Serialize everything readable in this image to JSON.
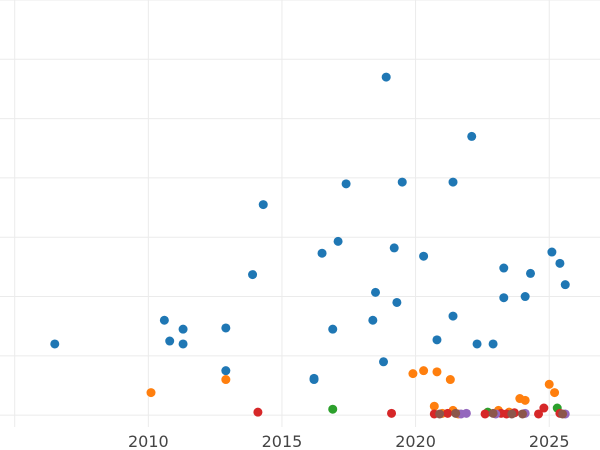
{
  "chart_data": {
    "type": "scatter",
    "title": "",
    "xlabel": "",
    "ylabel": "",
    "xlim": [
      2004.45,
      2026.9
    ],
    "ylim": [
      -0.2,
      7.0
    ],
    "x_ticks": [
      2010,
      2015,
      2020,
      2025
    ],
    "x_tick_labels": [
      "2010",
      "2015",
      "2020",
      "2025"
    ],
    "y_gridlines": [
      0,
      1,
      2,
      3,
      4,
      5,
      6,
      7
    ],
    "x_gridlines": [
      2005,
      2010,
      2015,
      2020,
      2025
    ],
    "grid": true,
    "legend": "none",
    "series": [
      {
        "color": "#1f77b4",
        "points": [
          [
            2006.5,
            1.2
          ],
          [
            2010.6,
            1.6
          ],
          [
            2010.8,
            1.25
          ],
          [
            2011.3,
            1.45
          ],
          [
            2011.3,
            1.2
          ],
          [
            2012.9,
            1.47
          ],
          [
            2012.9,
            0.75
          ],
          [
            2013.9,
            2.37
          ],
          [
            2014.3,
            3.55
          ],
          [
            2016.2,
            0.6
          ],
          [
            2016.2,
            0.62
          ],
          [
            2016.5,
            2.73
          ],
          [
            2016.9,
            1.45
          ],
          [
            2017.1,
            2.93
          ],
          [
            2017.4,
            3.9
          ],
          [
            2018.4,
            1.6
          ],
          [
            2018.5,
            2.07
          ],
          [
            2018.8,
            0.9
          ],
          [
            2018.9,
            5.7
          ],
          [
            2019.2,
            2.82
          ],
          [
            2019.3,
            1.9
          ],
          [
            2019.5,
            3.93
          ],
          [
            2020.3,
            2.68
          ],
          [
            2020.8,
            1.27
          ],
          [
            2021.4,
            1.67
          ],
          [
            2021.4,
            3.93
          ],
          [
            2022.1,
            4.7
          ],
          [
            2022.3,
            1.2
          ],
          [
            2022.9,
            1.2
          ],
          [
            2023.3,
            2.48
          ],
          [
            2023.3,
            1.98
          ],
          [
            2024.1,
            2.0
          ],
          [
            2024.3,
            2.39
          ],
          [
            2025.1,
            2.75
          ],
          [
            2025.4,
            2.56
          ],
          [
            2025.6,
            2.2
          ]
        ]
      },
      {
        "color": "#ff7f0e",
        "points": [
          [
            2010.1,
            0.38
          ],
          [
            2012.9,
            0.6
          ],
          [
            2019.9,
            0.7
          ],
          [
            2020.3,
            0.75
          ],
          [
            2020.7,
            0.15
          ],
          [
            2020.8,
            0.73
          ],
          [
            2021.0,
            0.03
          ],
          [
            2021.3,
            0.6
          ],
          [
            2021.4,
            0.08
          ],
          [
            2021.6,
            0.02
          ],
          [
            2023.1,
            0.08
          ],
          [
            2023.5,
            0.05
          ],
          [
            2023.9,
            0.28
          ],
          [
            2024.1,
            0.25
          ],
          [
            2025.0,
            0.52
          ],
          [
            2025.2,
            0.38
          ]
        ]
      },
      {
        "color": "#2ca02c",
        "points": [
          [
            2016.9,
            0.1
          ],
          [
            2022.7,
            0.05
          ],
          [
            2025.3,
            0.12
          ]
        ]
      },
      {
        "color": "#d62728",
        "points": [
          [
            2014.1,
            0.05
          ],
          [
            2019.1,
            0.03
          ],
          [
            2020.7,
            0.02
          ],
          [
            2021.2,
            0.03
          ],
          [
            2022.6,
            0.02
          ],
          [
            2023.2,
            0.03
          ],
          [
            2023.4,
            0.02
          ],
          [
            2023.7,
            0.04
          ],
          [
            2024.6,
            0.02
          ],
          [
            2024.8,
            0.12
          ],
          [
            2025.4,
            0.03
          ]
        ]
      },
      {
        "color": "#9467bd",
        "points": [
          [
            2021.7,
            0.02
          ],
          [
            2021.9,
            0.03
          ],
          [
            2023.0,
            0.02
          ],
          [
            2024.1,
            0.03
          ],
          [
            2025.6,
            0.02
          ]
        ]
      },
      {
        "color": "#8c564b",
        "points": [
          [
            2020.9,
            0.02
          ],
          [
            2021.5,
            0.03
          ],
          [
            2022.9,
            0.03
          ],
          [
            2023.6,
            0.02
          ],
          [
            2024.0,
            0.02
          ],
          [
            2025.5,
            0.02
          ]
        ]
      }
    ]
  }
}
